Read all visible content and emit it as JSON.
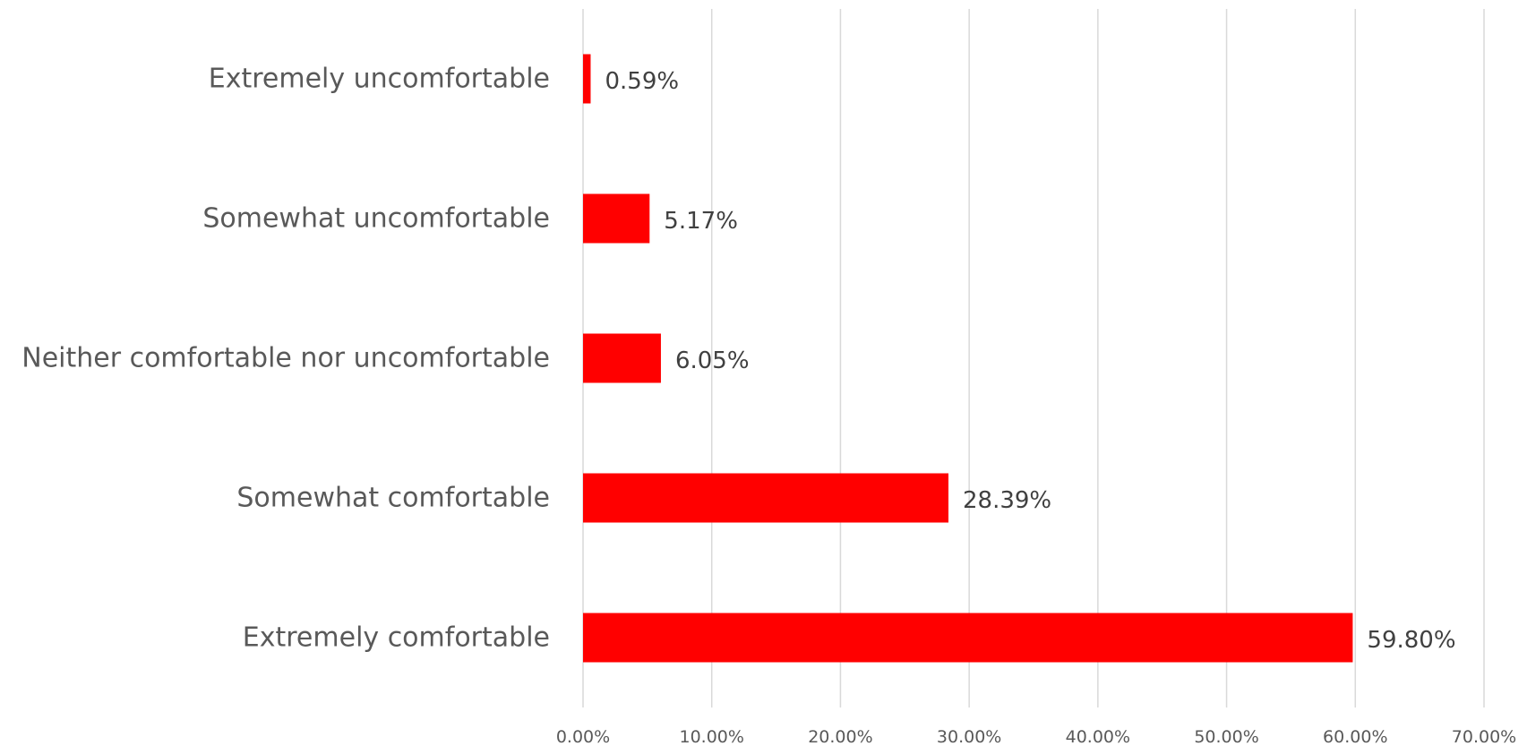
{
  "chart_data": {
    "type": "bar",
    "orientation": "horizontal",
    "categories": [
      "Extremely uncomfortable",
      "Somewhat uncomfortable",
      "Neither comfortable nor uncomfortable",
      "Somewhat comfortable",
      "Extremely comfortable"
    ],
    "values": [
      0.59,
      5.17,
      6.05,
      28.39,
      59.8
    ],
    "data_labels": [
      "0.59%",
      "5.17%",
      "6.05%",
      "28.39%",
      "59.80%"
    ],
    "xlim": [
      0,
      70
    ],
    "x_ticks": [
      0,
      10,
      20,
      30,
      40,
      50,
      60,
      70
    ],
    "x_tick_labels": [
      "0.00%",
      "10.00%",
      "20.00%",
      "30.00%",
      "40.00%",
      "50.00%",
      "60.00%",
      "70.00%"
    ],
    "title": "",
    "xlabel": "",
    "ylabel": "",
    "grid": "vertical",
    "legend": "none",
    "bar_color": "#ff0000"
  }
}
